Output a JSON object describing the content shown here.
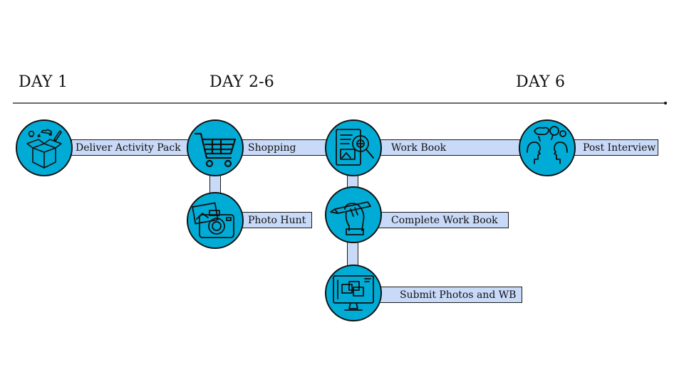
{
  "days": {
    "day1": "DAY 1",
    "day2_6": "DAY 2-6",
    "day6": "DAY 6"
  },
  "steps": {
    "deliver": "Deliver Activity Pack",
    "shopping": "Shopping",
    "photo_hunt": "Photo Hunt",
    "work_book": "Work Book",
    "complete_work_book": "Complete Work Book",
    "submit": "Submit Photos and WB",
    "post_interview": "Post Interview"
  },
  "icons": {
    "deliver": "open-box-icon",
    "shopping": "shopping-cart-icon",
    "photo_hunt": "camera-icon",
    "work_book": "workbook-magnifier-icon",
    "complete_work_book": "hand-pen-icon",
    "submit": "monitor-upload-icon",
    "post_interview": "conversation-icon"
  },
  "colors": {
    "circle_fill": "#00acd6",
    "bar_fill": "#c9daf8"
  }
}
